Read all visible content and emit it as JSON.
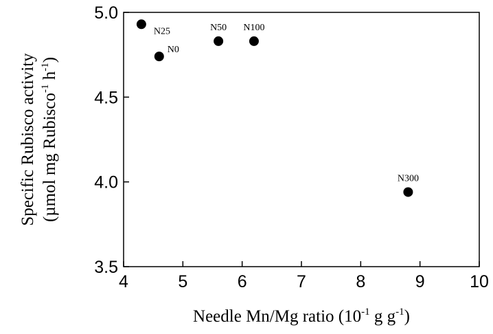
{
  "chart_data": {
    "type": "scatter",
    "xlabel": {
      "pre": "Needle Mn/Mg ratio (10",
      "sup1": "-1",
      "mid": " g g",
      "sup2": "-1",
      "post": ")"
    },
    "ylabel": {
      "line1": "Specific Rubisco activity",
      "line2_pre": "(µmol mg Rubisco",
      "sup1": "-1",
      "line2_mid": " h",
      "sup2": "-1",
      "line2_post": ")"
    },
    "xlim": [
      4,
      10
    ],
    "ylim": [
      3.5,
      5.0
    ],
    "xticks": [
      "4",
      "5",
      "6",
      "7",
      "8",
      "9",
      "10"
    ],
    "yticks": [
      "3.5",
      "4.0",
      "4.5",
      "5.0"
    ],
    "grid": false,
    "legend": "none",
    "points": [
      {
        "label": "N25",
        "x": 4.3,
        "y": 4.93
      },
      {
        "label": "N0",
        "x": 4.6,
        "y": 4.74
      },
      {
        "label": "N50",
        "x": 5.6,
        "y": 4.83
      },
      {
        "label": "N100",
        "x": 6.2,
        "y": 4.83
      },
      {
        "label": "N300",
        "x": 8.8,
        "y": 3.94
      }
    ]
  }
}
